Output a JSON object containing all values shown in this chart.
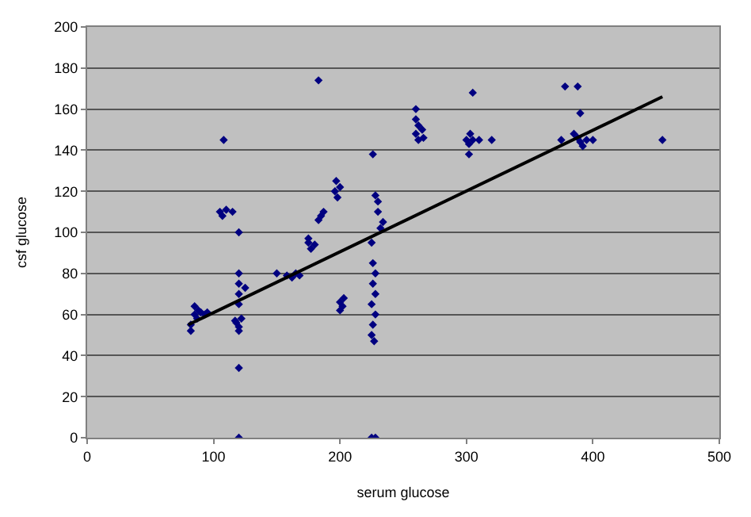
{
  "chart_data": {
    "type": "scatter",
    "xlabel": "serum glucose",
    "ylabel": "csf glucose",
    "xlim": [
      0,
      500
    ],
    "xticks": [
      0,
      100,
      200,
      300,
      400,
      500
    ],
    "ylim": [
      0,
      200
    ],
    "yticks": [
      0,
      20,
      40,
      60,
      80,
      100,
      120,
      140,
      160,
      180,
      200
    ],
    "grid": "y",
    "marker": "diamond",
    "legend": false,
    "series": [
      {
        "color": "#000080",
        "x": [
          82,
          82,
          85,
          88,
          90,
          93,
          85,
          95,
          87,
          105,
          107,
          110,
          115,
          108,
          120,
          120,
          120,
          118,
          120,
          122,
          120,
          120,
          120,
          125,
          120,
          120,
          117,
          150,
          158,
          162,
          165,
          168,
          175,
          175,
          177,
          180,
          183,
          185,
          187,
          183,
          196,
          197,
          198,
          200,
          200,
          202,
          200,
          203,
          225,
          228,
          226,
          228,
          230,
          230,
          232,
          234,
          225,
          226,
          228,
          226,
          228,
          225,
          228,
          226,
          225,
          227,
          260,
          260,
          262,
          260,
          265,
          262,
          266,
          300,
          302,
          303,
          305,
          302,
          305,
          310,
          320,
          375,
          378,
          388,
          390,
          385,
          388,
          390,
          392,
          395,
          400,
          455
        ],
        "values": [
          55,
          52,
          60,
          62,
          61,
          60,
          64,
          61,
          58,
          110,
          108,
          111,
          110,
          145,
          0,
          34,
          54,
          56,
          52,
          58,
          65,
          70,
          75,
          73,
          80,
          100,
          57,
          80,
          79,
          78,
          80,
          79,
          95,
          97,
          92,
          94,
          174,
          108,
          110,
          106,
          120,
          125,
          117,
          122,
          62,
          64,
          66,
          68,
          0,
          0,
          138,
          118,
          115,
          110,
          102,
          105,
          95,
          85,
          80,
          75,
          70,
          65,
          60,
          55,
          50,
          47,
          160,
          155,
          152,
          148,
          150,
          145,
          146,
          145,
          143,
          148,
          168,
          138,
          145,
          145,
          145,
          145,
          171,
          171,
          158,
          148,
          146,
          144,
          142,
          145,
          145,
          145
        ]
      },
      {
        "type": "line",
        "color": "#000000",
        "x": [
          80,
          455
        ],
        "values": [
          55,
          166
        ],
        "marker": "none"
      }
    ]
  }
}
